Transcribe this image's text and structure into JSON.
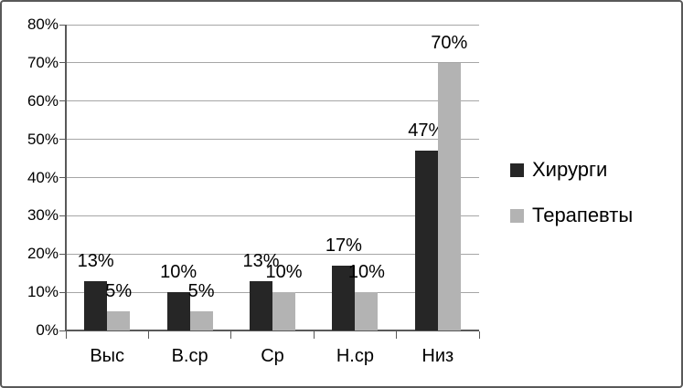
{
  "chart": {
    "background": "#ffffff",
    "border_color": "#595959"
  },
  "chart_data": {
    "type": "bar",
    "title": "",
    "xlabel": "",
    "ylabel": "",
    "categories": [
      "Выс",
      "В.ср",
      "Ср",
      "Н.ср",
      "Низ"
    ],
    "series": [
      {
        "name": "Хирурги",
        "color": "#262626",
        "values": [
          13,
          10,
          13,
          17,
          47
        ]
      },
      {
        "name": "Терапевты",
        "color": "#b3b3b3",
        "values": [
          5,
          5,
          10,
          10,
          70
        ]
      }
    ],
    "value_suffix": "%",
    "data_labels": true,
    "ylim": [
      0,
      80
    ],
    "ytick_step": 10,
    "ytick_labels": [
      "0%",
      "10%",
      "20%",
      "30%",
      "40%",
      "50%",
      "60%",
      "70%",
      "80%"
    ],
    "grid": true,
    "gridline_color": "#a6a6a6",
    "axis_color": "#595959",
    "legend_position": "right"
  }
}
